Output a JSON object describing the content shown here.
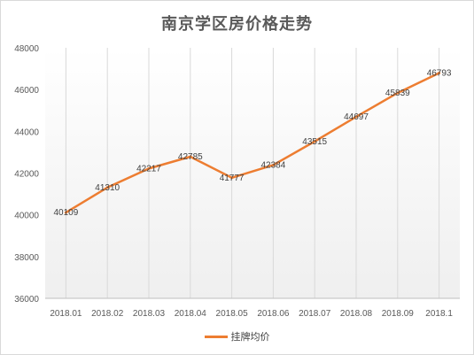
{
  "chart_data": {
    "type": "line",
    "title": "南京学区房价格走势",
    "categories": [
      "2018.01",
      "2018.02",
      "2018.03",
      "2018.04",
      "2018.05",
      "2018.06",
      "2018.07",
      "2018.08",
      "2018.09",
      "2018.1"
    ],
    "series": [
      {
        "name": "挂牌均价",
        "values": [
          40109,
          41310,
          42217,
          42785,
          41777,
          42384,
          43515,
          44697,
          45839,
          46793
        ],
        "color": "#ed7d31"
      }
    ],
    "ylim": [
      36000,
      48000
    ],
    "yticks": [
      36000,
      38000,
      40000,
      42000,
      44000,
      46000,
      48000
    ],
    "grid": "vertical",
    "legend": "bottom",
    "background_gradient": [
      "#ffffff",
      "#efefef"
    ]
  }
}
